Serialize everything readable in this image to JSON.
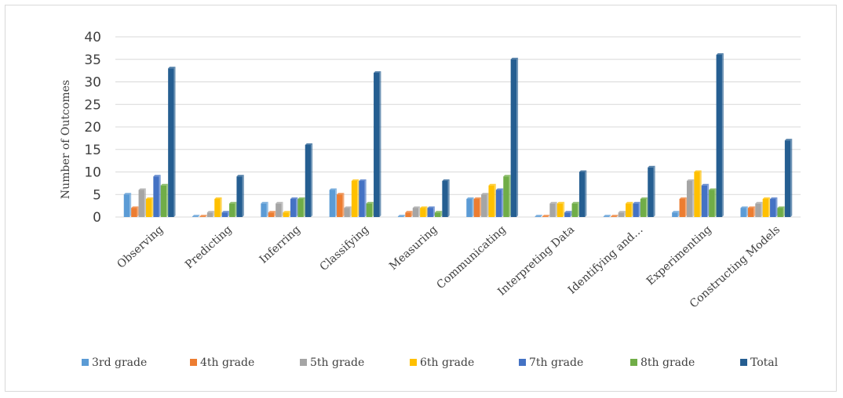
{
  "chart_data": {
    "type": "bar",
    "title": "",
    "xlabel": "",
    "ylabel": "Number of Outcomes",
    "ylim": [
      0,
      40
    ],
    "yticks": [
      0,
      5,
      10,
      15,
      20,
      25,
      30,
      35,
      40
    ],
    "grid": true,
    "legend_position": "bottom",
    "categories": [
      "Observing",
      "Predicting",
      "Inferring",
      "Classifying",
      "Measuring",
      "Communicating",
      "Interpreting Data",
      "Identifying and…",
      "Experimenting",
      "Constructing Models"
    ],
    "series": [
      {
        "name": "3rd grade",
        "color": "#5b9bd5",
        "values": [
          5,
          0,
          3,
          6,
          0,
          4,
          0,
          0,
          1,
          2
        ]
      },
      {
        "name": "4th grade",
        "color": "#ed7d31",
        "values": [
          2,
          0,
          1,
          5,
          1,
          4,
          0,
          0,
          4,
          2
        ]
      },
      {
        "name": "5th grade",
        "color": "#a5a5a5",
        "values": [
          6,
          1,
          3,
          2,
          2,
          5,
          3,
          1,
          8,
          3
        ]
      },
      {
        "name": "6th grade",
        "color": "#ffc000",
        "values": [
          4,
          4,
          1,
          8,
          2,
          7,
          3,
          3,
          10,
          4
        ]
      },
      {
        "name": "7th grade",
        "color": "#4472c4",
        "values": [
          9,
          1,
          4,
          8,
          2,
          6,
          1,
          3,
          7,
          4
        ]
      },
      {
        "name": "8th grade",
        "color": "#70ad47",
        "values": [
          7,
          3,
          4,
          3,
          1,
          9,
          3,
          4,
          6,
          2
        ]
      },
      {
        "name": "Total",
        "color": "#255e91",
        "values": [
          33,
          9,
          16,
          32,
          8,
          35,
          10,
          11,
          36,
          17
        ]
      }
    ]
  }
}
